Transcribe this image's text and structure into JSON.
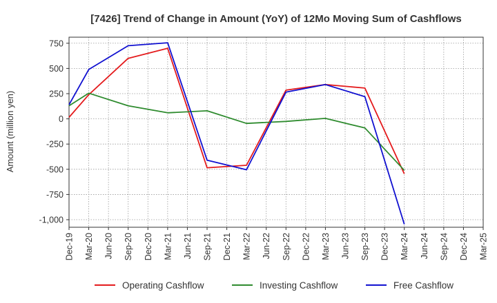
{
  "chart_data": {
    "type": "line",
    "title": "[7426]  Trend of Change in Amount (YoY) of 12Mo Moving Sum of Cashflows",
    "xlabel": "",
    "ylabel": "Amount (million yen)",
    "ylim": [
      -1075,
      810
    ],
    "yticks": [
      750,
      500,
      250,
      0,
      -250,
      -500,
      -750,
      -1000
    ],
    "ytick_labels": [
      "750",
      "500",
      "250",
      "0",
      "-250",
      "-500",
      "-750",
      "-1,000"
    ],
    "categories": [
      "Dec-19",
      "Mar-20",
      "Jun-20",
      "Sep-20",
      "Dec-20",
      "Mar-21",
      "Jun-21",
      "Sep-21",
      "Dec-21",
      "Mar-22",
      "Jun-22",
      "Sep-22",
      "Dec-22",
      "Mar-23",
      "Jun-23",
      "Sep-23",
      "Dec-23",
      "Mar-24",
      "Jun-24",
      "Sep-24",
      "Dec-24",
      "Mar-25"
    ],
    "grid": true,
    "legend_position": "bottom",
    "series": [
      {
        "name": "Operating Cashflow",
        "color": "#e41a1c",
        "values": [
          15,
          240,
          null,
          600,
          null,
          700,
          null,
          -485,
          null,
          -460,
          null,
          285,
          null,
          340,
          null,
          305,
          null,
          -545,
          null,
          null,
          null,
          null
        ]
      },
      {
        "name": "Investing Cashflow",
        "color": "#2e8b2e",
        "values": [
          130,
          255,
          null,
          130,
          null,
          60,
          null,
          80,
          null,
          -45,
          null,
          -25,
          null,
          5,
          null,
          -90,
          null,
          -510,
          null,
          null,
          null,
          null
        ]
      },
      {
        "name": "Free Cashflow",
        "color": "#1010d0",
        "values": [
          140,
          490,
          null,
          725,
          null,
          755,
          null,
          -410,
          null,
          -505,
          null,
          265,
          null,
          340,
          null,
          220,
          null,
          -1045,
          null,
          null,
          null,
          null
        ]
      }
    ]
  }
}
